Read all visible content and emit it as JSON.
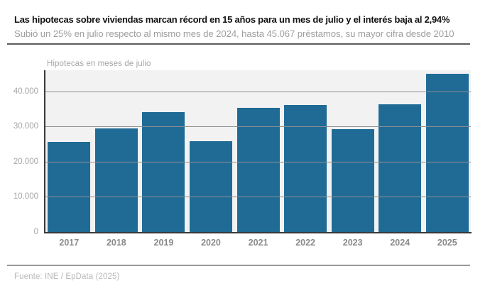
{
  "header": {
    "title": "Las hipotecas sobre viviendas marcan récord en 15 años para un mes de julio y el interés baja al 2,94%",
    "subtitle": "Subió un 25% en julio respecto al mismo mes de 2024, hasta 45.067 préstamos, su mayor cifra desde 2010"
  },
  "chart_data": {
    "type": "bar",
    "title": "Hipotecas en meses de julio",
    "categories": [
      "2017",
      "2018",
      "2019",
      "2020",
      "2021",
      "2022",
      "2023",
      "2024",
      "2025"
    ],
    "values": [
      25600,
      29500,
      34000,
      25900,
      35300,
      36200,
      29300,
      36400,
      45067
    ],
    "highlight_value_2025": "45.067",
    "xlabel": "",
    "ylabel": "",
    "ylim": [
      0,
      46000
    ],
    "yticks": [
      0,
      10000,
      20000,
      30000,
      40000
    ],
    "ytick_labels": [
      "0",
      "10.000",
      "20.000",
      "30.000",
      "40.000"
    ],
    "grid": true,
    "legend": "none",
    "bar_color": "#206b96",
    "plot_bg_color": "#f2f2f3",
    "axis_color": "#3a3a3a",
    "gridline_color": "#8f8f8f"
  },
  "footer": {
    "source": "Fuente: INE / EpData (2025)"
  }
}
